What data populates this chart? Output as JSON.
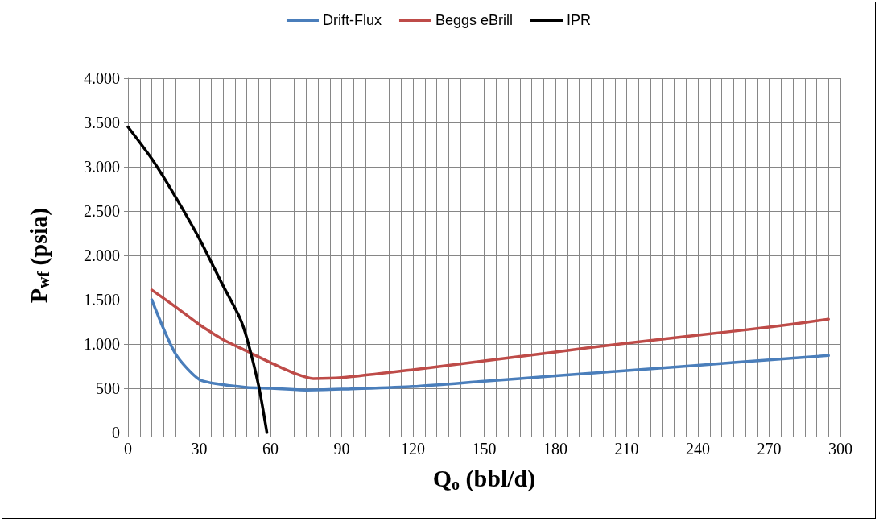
{
  "chart_data": {
    "type": "line",
    "xlabel": "Q$_{o}$ (bbl/d)",
    "ylabel": "P$_{wf}$ (psia)",
    "xlim": [
      0,
      300
    ],
    "xticks": [
      0,
      {
        "value": 5,
        "label": null
      },
      {
        "value": 10,
        "label": null
      },
      {
        "value": 15,
        "label": null
      },
      {
        "value": 20,
        "label": null
      },
      {
        "value": 25,
        "label": null
      },
      30,
      {
        "value": 35,
        "label": null
      },
      {
        "value": 40,
        "label": null
      },
      {
        "value": 45,
        "label": null
      },
      {
        "value": 50,
        "label": null
      },
      {
        "value": 55,
        "label": null
      },
      60,
      {
        "value": 65,
        "label": null
      },
      {
        "value": 70,
        "label": null
      },
      {
        "value": 75,
        "label": null
      },
      {
        "value": 80,
        "label": null
      },
      {
        "value": 85,
        "label": null
      },
      90,
      {
        "value": 95,
        "label": null
      },
      {
        "value": 100,
        "label": null
      },
      {
        "value": 105,
        "label": null
      },
      {
        "value": 110,
        "label": null
      },
      {
        "value": 115,
        "label": null
      },
      120,
      {
        "value": 125,
        "label": null
      },
      {
        "value": 130,
        "label": null
      },
      {
        "value": 135,
        "label": null
      },
      {
        "value": 140,
        "label": null
      },
      {
        "value": 145,
        "label": null
      },
      150,
      {
        "value": 155,
        "label": null
      },
      {
        "value": 160,
        "label": null
      },
      {
        "value": 165,
        "label": null
      },
      {
        "value": 170,
        "label": null
      },
      {
        "value": 175,
        "label": null
      },
      180,
      {
        "value": 185,
        "label": null
      },
      {
        "value": 190,
        "label": null
      },
      {
        "value": 195,
        "label": null
      },
      {
        "value": 200,
        "label": null
      },
      {
        "value": 205,
        "label": null
      },
      210,
      {
        "value": 215,
        "label": null
      },
      {
        "value": 220,
        "label": null
      },
      {
        "value": 225,
        "label": null
      },
      {
        "value": 230,
        "label": null
      },
      {
        "value": 235,
        "label": null
      },
      240,
      {
        "value": 245,
        "label": null
      },
      {
        "value": 250,
        "label": null
      },
      {
        "value": 255,
        "label": null
      },
      {
        "value": 260,
        "label": null
      },
      {
        "value": 265,
        "label": null
      },
      270,
      {
        "value": 275,
        "label": null
      },
      {
        "value": 280,
        "label": null
      },
      {
        "value": 285,
        "label": null
      },
      {
        "value": 290,
        "label": null
      },
      {
        "value": 295,
        "label": null
      },
      300
    ],
    "ylim": [
      0,
      4000
    ],
    "yticks": [
      0,
      500,
      {
        "value": 1000,
        "label": "1.000"
      },
      {
        "value": 1500,
        "label": "1.500"
      },
      {
        "value": 2000,
        "label": "2.000"
      },
      {
        "value": 2500,
        "label": "2.500"
      },
      {
        "value": 3000,
        "label": "3.000"
      },
      {
        "value": 3500,
        "label": "3.500"
      },
      {
        "value": 4000,
        "label": "4.000"
      }
    ],
    "grid": true,
    "legend": "top",
    "marker": "none",
    "line_style": "solid",
    "series": [
      {
        "name": "Drift-Flux",
        "color": "#4a7ebb",
        "x": [
          10,
          20,
          30,
          40,
          50,
          60,
          75,
          90,
          120,
          150,
          180,
          210,
          240,
          270,
          295
        ],
        "values": [
          1500,
          890,
          600,
          540,
          510,
          500,
          480,
          490,
          520,
          580,
          640,
          700,
          760,
          820,
          870
        ]
      },
      {
        "name": "Beggs eBrill",
        "color": "#be4b48",
        "x": [
          10,
          20,
          30,
          40,
          50,
          60,
          70,
          78,
          90,
          120,
          150,
          180,
          210,
          240,
          270,
          295
        ],
        "values": [
          1610,
          1420,
          1220,
          1050,
          920,
          790,
          670,
          610,
          620,
          710,
          810,
          910,
          1010,
          1100,
          1190,
          1280
        ]
      },
      {
        "name": "IPR",
        "color": "#000000",
        "x": [
          0,
          10,
          20,
          30,
          40,
          47,
          50,
          55,
          58.5
        ],
        "values": [
          3450,
          3090,
          2660,
          2190,
          1660,
          1300,
          1070,
          530,
          0
        ]
      }
    ]
  }
}
